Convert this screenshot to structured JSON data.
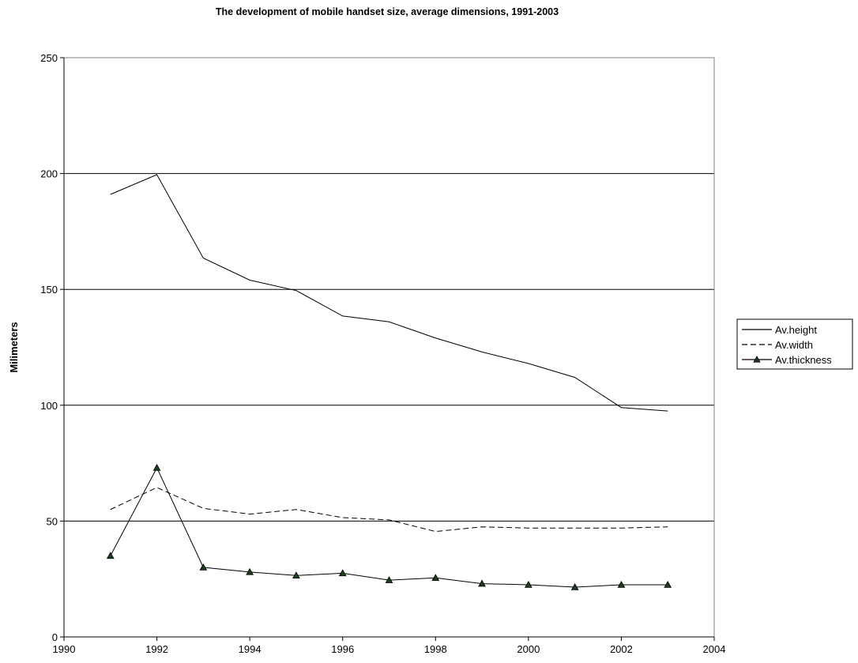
{
  "chart_data": {
    "type": "line",
    "title": "The development of mobile handset size, average dimensions, 1991-2003",
    "xlabel": "",
    "ylabel": "Milimeters",
    "xlim": [
      1990,
      2004
    ],
    "ylim": [
      0,
      250
    ],
    "x_ticks": [
      1990,
      1992,
      1994,
      1996,
      1998,
      2000,
      2002,
      2004
    ],
    "y_ticks": [
      0,
      50,
      100,
      150,
      200,
      250
    ],
    "grid": "horizontal",
    "legend_position": "right",
    "x": [
      1991,
      1992,
      1993,
      1994,
      1995,
      1996,
      1997,
      1998,
      1999,
      2000,
      2001,
      2002,
      2003
    ],
    "series": [
      {
        "name": "Av.height",
        "style": "solid",
        "marker": "none",
        "values": [
          191,
          199.5,
          163.5,
          154,
          149.5,
          138.5,
          136,
          129,
          123,
          118,
          112,
          99,
          97.5
        ]
      },
      {
        "name": "Av.width",
        "style": "dashed",
        "marker": "none",
        "values": [
          55,
          64.5,
          55.5,
          53,
          55,
          51.5,
          50.5,
          45.5,
          47.5,
          47,
          47,
          47,
          47.5
        ]
      },
      {
        "name": "Av.thickness",
        "style": "solid",
        "marker": "triangle",
        "marker_color": "#1e3d1e",
        "values": [
          35,
          73,
          30,
          28,
          26.5,
          27.5,
          24.5,
          25.5,
          23,
          22.5,
          21.5,
          22.5,
          22.5
        ]
      }
    ]
  }
}
